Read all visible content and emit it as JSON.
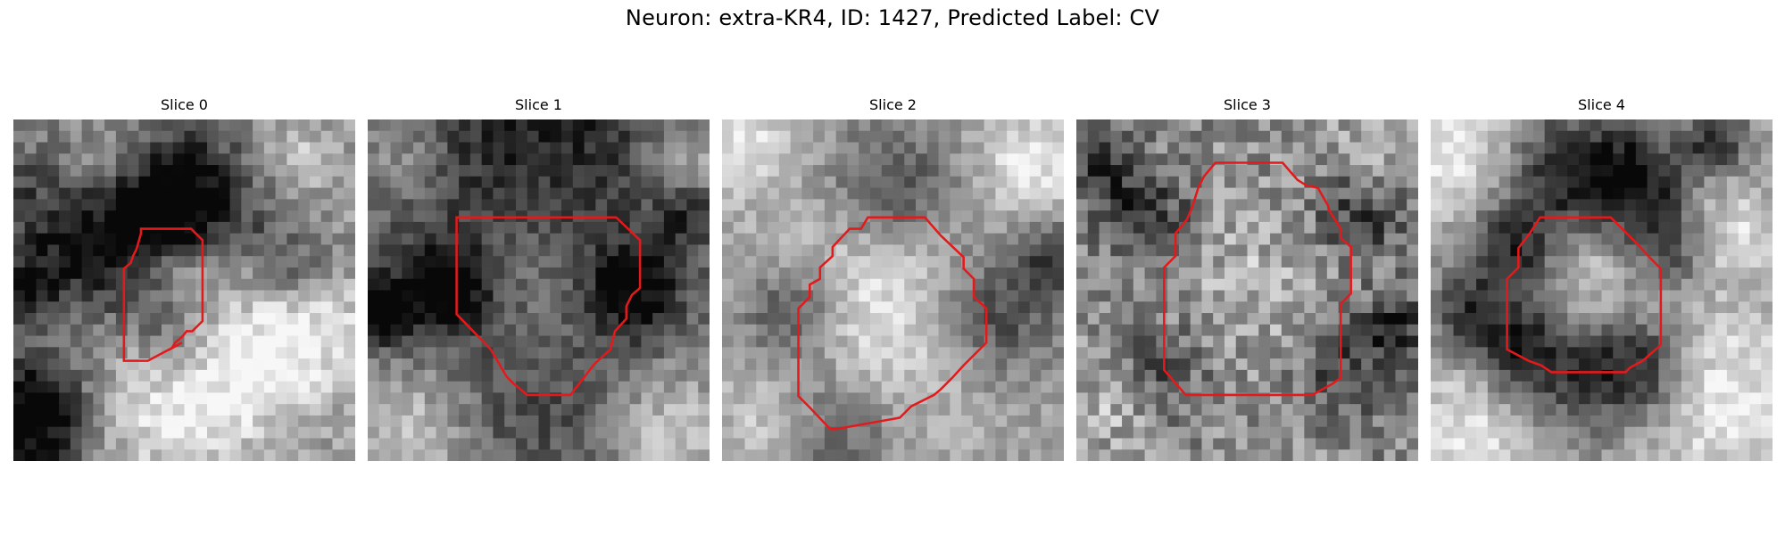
{
  "figure": {
    "title": "Neuron: extra-KR4, ID: 1427, Predicted Label: CV"
  },
  "colors": {
    "background": "#ffffff",
    "contour": "#e31a1c",
    "colormap": "grayscale"
  },
  "grid_size": 30,
  "panels": [
    {
      "title": "Slice 0",
      "contour": [
        [
          11.2,
          9.6
        ],
        [
          15.6,
          9.6
        ],
        [
          16.6,
          10.6
        ],
        [
          16.6,
          17.7
        ],
        [
          15.7,
          18.6
        ],
        [
          15.2,
          18.6
        ],
        [
          14.8,
          19.1
        ],
        [
          14.2,
          19.6
        ],
        [
          13.9,
          20.1
        ],
        [
          14.8,
          19.6
        ],
        [
          11.8,
          21.2
        ],
        [
          9.7,
          21.2
        ],
        [
          9.7,
          19.6
        ],
        [
          9.7,
          13.1
        ],
        [
          10.3,
          12.6
        ],
        [
          10.5,
          12.0
        ],
        [
          10.8,
          11.4
        ],
        [
          11.2,
          10.0
        ]
      ],
      "dark_blobs": [
        [
          4,
          7,
          5,
          0.45
        ],
        [
          12,
          8,
          3,
          0.4
        ],
        [
          16,
          8,
          3,
          0.35
        ],
        [
          15,
          3,
          4,
          0.3
        ],
        [
          8,
          12,
          4,
          0.4
        ],
        [
          14,
          19,
          3,
          0.35
        ],
        [
          2,
          26,
          4,
          0.7
        ],
        [
          1,
          15,
          2,
          0.4
        ],
        [
          22,
          6,
          3,
          0.25
        ],
        [
          24,
          13,
          3,
          0.3
        ]
      ],
      "light_blobs": [
        [
          7,
          5,
          4,
          0.35
        ],
        [
          14,
          14,
          3,
          0.15
        ],
        [
          20,
          22,
          5,
          0.3
        ],
        [
          12,
          25,
          5,
          0.3
        ],
        [
          26,
          18,
          4,
          0.3
        ],
        [
          24,
          4,
          3,
          0.3
        ]
      ],
      "base": 0.58,
      "noise": 0.14,
      "seed": 11
    },
    {
      "title": "Slice 1",
      "contour": [
        [
          7.8,
          8.6
        ],
        [
          21.8,
          8.6
        ],
        [
          23.9,
          10.6
        ],
        [
          23.9,
          14.8
        ],
        [
          23.2,
          15.4
        ],
        [
          22.7,
          16.4
        ],
        [
          22.7,
          17.5
        ],
        [
          21.7,
          18.6
        ],
        [
          21.3,
          20.2
        ],
        [
          20.2,
          21.2
        ],
        [
          19.8,
          21.6
        ],
        [
          17.8,
          24.2
        ],
        [
          14.0,
          24.2
        ],
        [
          12.8,
          23.2
        ],
        [
          12.2,
          22.6
        ],
        [
          10.8,
          20.2
        ],
        [
          7.8,
          17.1
        ],
        [
          7.8,
          10.0
        ]
      ],
      "dark_blobs": [
        [
          15,
          5,
          12,
          0.55
        ],
        [
          7,
          15,
          3,
          0.45
        ],
        [
          23,
          15,
          3,
          0.45
        ],
        [
          15,
          23,
          8,
          0.35
        ],
        [
          1,
          17,
          2,
          0.6
        ],
        [
          28,
          8,
          2,
          0.3
        ]
      ],
      "light_blobs": [
        [
          15,
          15,
          7,
          0.45
        ],
        [
          3,
          3,
          3,
          0.25
        ],
        [
          28,
          4,
          3,
          0.35
        ],
        [
          4,
          27,
          4,
          0.3
        ],
        [
          26,
          27,
          4,
          0.3
        ]
      ],
      "base": 0.6,
      "noise": 0.12,
      "seed": 23
    },
    {
      "title": "Slice 2",
      "contour": [
        [
          12.8,
          8.6
        ],
        [
          17.8,
          8.6
        ],
        [
          19.2,
          10.2
        ],
        [
          21.2,
          12.1
        ],
        [
          21.2,
          13.1
        ],
        [
          22.1,
          14.0
        ],
        [
          22.1,
          15.6
        ],
        [
          23.2,
          16.6
        ],
        [
          23.2,
          19.6
        ],
        [
          22.2,
          20.6
        ],
        [
          21.2,
          21.6
        ],
        [
          20.2,
          22.7
        ],
        [
          19.2,
          23.7
        ],
        [
          18.6,
          24.2
        ],
        [
          16.6,
          25.2
        ],
        [
          15.6,
          26.2
        ],
        [
          10.0,
          27.2
        ],
        [
          9.5,
          27.2
        ],
        [
          7.7,
          25.3
        ],
        [
          6.7,
          24.3
        ],
        [
          6.7,
          22.3
        ],
        [
          6.7,
          21.2
        ],
        [
          6.7,
          16.6
        ],
        [
          7.7,
          15.6
        ],
        [
          7.7,
          14.5
        ],
        [
          8.6,
          14.0
        ],
        [
          8.6,
          13.0
        ],
        [
          9.7,
          12.0
        ],
        [
          9.7,
          11.2
        ],
        [
          11.2,
          9.6
        ],
        [
          12.2,
          9.6
        ]
      ],
      "dark_blobs": [
        [
          6,
          17,
          3,
          0.4
        ],
        [
          24,
          17,
          4,
          0.4
        ],
        [
          15,
          6,
          4,
          0.35
        ],
        [
          10,
          27,
          4,
          0.3
        ],
        [
          29,
          12,
          2,
          0.4
        ]
      ],
      "light_blobs": [
        [
          14,
          17,
          7,
          0.3
        ],
        [
          2,
          2,
          3,
          0.3
        ],
        [
          27,
          4,
          3,
          0.3
        ],
        [
          4,
          27,
          3,
          0.2
        ]
      ],
      "base": 0.62,
      "noise": 0.11,
      "seed": 37
    },
    {
      "title": "Slice 3",
      "contour": [
        [
          12.2,
          3.8
        ],
        [
          18.1,
          3.8
        ],
        [
          19.4,
          5.3
        ],
        [
          20.2,
          5.8
        ],
        [
          21.2,
          6.0
        ],
        [
          22.1,
          7.6
        ],
        [
          22.2,
          8.0
        ],
        [
          23.2,
          9.6
        ],
        [
          23.2,
          10.4
        ],
        [
          24.1,
          11.2
        ],
        [
          24.1,
          15.3
        ],
        [
          23.2,
          16.2
        ],
        [
          23.2,
          22.7
        ],
        [
          22.5,
          23.2
        ],
        [
          20.7,
          24.2
        ],
        [
          9.6,
          24.2
        ],
        [
          7.7,
          22.0
        ],
        [
          7.7,
          13.0
        ],
        [
          8.7,
          12.0
        ],
        [
          8.7,
          10.0
        ],
        [
          9.7,
          8.8
        ],
        [
          10.2,
          7.6
        ],
        [
          10.7,
          6.0
        ],
        [
          11.2,
          5.0
        ]
      ],
      "dark_blobs": [
        [
          6,
          8,
          3,
          0.35
        ],
        [
          25,
          8,
          3,
          0.35
        ],
        [
          7,
          22,
          3,
          0.3
        ],
        [
          24,
          22,
          3,
          0.3
        ],
        [
          28,
          18,
          2,
          0.4
        ],
        [
          2,
          4,
          2,
          0.3
        ]
      ],
      "light_blobs": [
        [
          15,
          14,
          5,
          0.15
        ],
        [
          3,
          25,
          3,
          0.2
        ],
        [
          26,
          3,
          3,
          0.2
        ]
      ],
      "base": 0.55,
      "noise": 0.2,
      "seed": 53
    },
    {
      "title": "Slice 4",
      "contour": [
        [
          9.6,
          8.6
        ],
        [
          15.8,
          8.6
        ],
        [
          17.8,
          10.6
        ],
        [
          19.3,
          12.2
        ],
        [
          20.2,
          13.1
        ],
        [
          20.2,
          19.8
        ],
        [
          18.6,
          21.2
        ],
        [
          17.5,
          21.8
        ],
        [
          17.1,
          22.2
        ],
        [
          10.6,
          22.2
        ],
        [
          9.7,
          21.6
        ],
        [
          8.6,
          21.2
        ],
        [
          6.7,
          20.2
        ],
        [
          6.7,
          14.0
        ],
        [
          7.7,
          13.0
        ],
        [
          7.7,
          11.3
        ],
        [
          8.7,
          10.0
        ]
      ],
      "dark_blobs": [
        [
          12,
          5,
          4,
          0.5
        ],
        [
          18,
          5,
          3,
          0.45
        ],
        [
          7,
          12,
          3,
          0.5
        ],
        [
          21,
          11,
          3,
          0.4
        ],
        [
          7,
          20,
          3,
          0.45
        ],
        [
          19,
          22,
          3,
          0.45
        ],
        [
          13,
          22,
          4,
          0.4
        ],
        [
          25,
          2,
          2,
          0.45
        ],
        [
          3,
          17,
          2,
          0.3
        ]
      ],
      "light_blobs": [
        [
          13,
          14,
          4,
          0.25
        ],
        [
          2,
          3,
          4,
          0.35
        ],
        [
          25,
          24,
          5,
          0.35
        ],
        [
          4,
          27,
          4,
          0.3
        ],
        [
          26,
          10,
          3,
          0.3
        ]
      ],
      "base": 0.62,
      "noise": 0.12,
      "seed": 71
    }
  ]
}
